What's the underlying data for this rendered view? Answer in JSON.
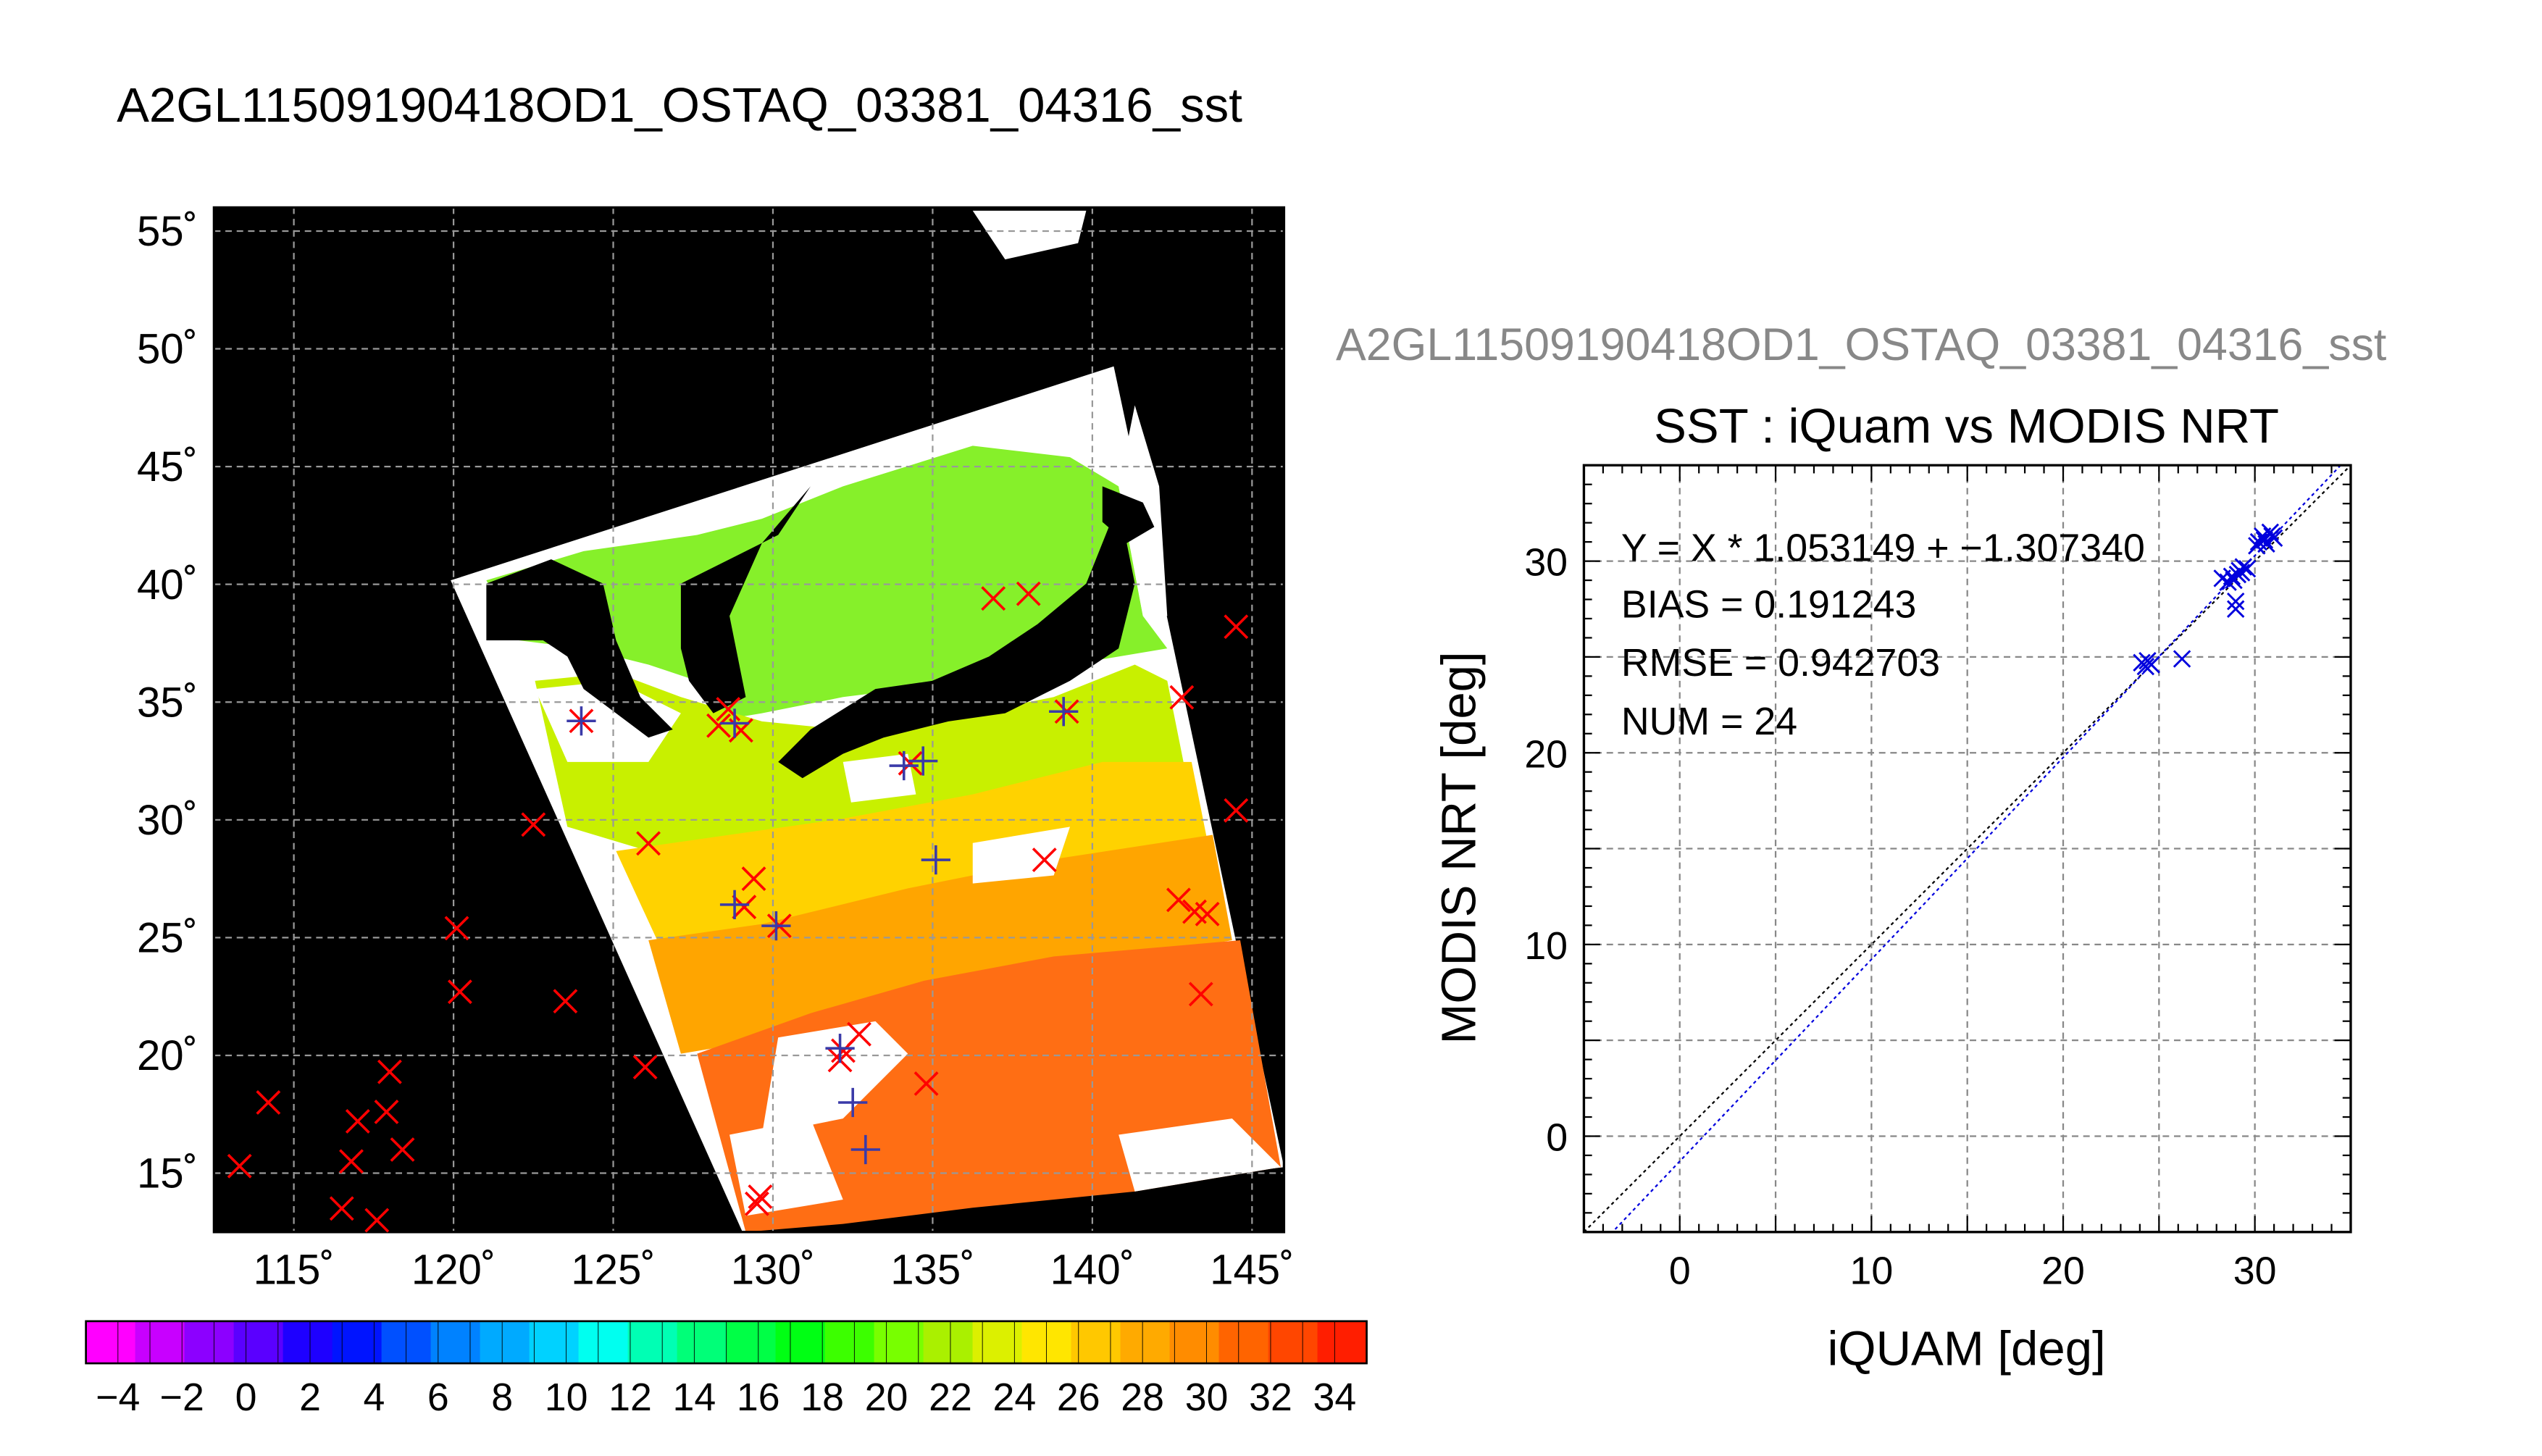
{
  "title": "A2GL11509190418OD1_OSTAQ_03381_04316_sst",
  "map": {
    "lat_labels": [
      "55˚",
      "50˚",
      "45˚",
      "40˚",
      "35˚",
      "30˚",
      "25˚",
      "20˚",
      "15˚"
    ],
    "lon_labels": [
      "115˚",
      "120˚",
      "125˚",
      "130˚",
      "135˚",
      "140˚",
      "145˚"
    ],
    "lon_range": [
      112.5,
      146
    ],
    "lat_range": [
      12.5,
      56
    ],
    "colors": {
      "background": "#000000",
      "cloud": "#ffffff",
      "land": "#000000",
      "marker_red": "#ff0000",
      "marker_blue": "#3a3aa8"
    },
    "red_markers": [
      [
        113.3,
        15.3
      ],
      [
        114.2,
        18
      ],
      [
        116.5,
        13.5
      ],
      [
        116.8,
        15.5
      ],
      [
        117,
        17.2
      ],
      [
        117.6,
        13
      ],
      [
        117.9,
        17.6
      ],
      [
        118,
        19.3
      ],
      [
        118.4,
        16
      ],
      [
        120.1,
        25.4
      ],
      [
        120.2,
        22.7
      ],
      [
        122.5,
        29.8
      ],
      [
        123.5,
        22.3
      ],
      [
        124,
        34.2
      ],
      [
        126,
        19.5
      ],
      [
        126.1,
        29
      ],
      [
        128.3,
        34
      ],
      [
        128.6,
        34.7
      ],
      [
        129,
        33.8
      ],
      [
        129.1,
        26.3
      ],
      [
        129.4,
        27.5
      ],
      [
        129.5,
        13.7
      ],
      [
        129.6,
        14
      ],
      [
        130.2,
        25.5
      ],
      [
        132.1,
        19.8
      ],
      [
        132.2,
        20.2
      ],
      [
        132.7,
        20.9
      ],
      [
        134.8,
        18.8
      ],
      [
        134.3,
        32.4
      ],
      [
        136.9,
        39.4
      ],
      [
        138,
        39.6
      ],
      [
        138.5,
        28.3
      ],
      [
        139.2,
        34.6
      ],
      [
        142.7,
        26.6
      ],
      [
        142.8,
        35.2
      ],
      [
        143.2,
        26.1
      ],
      [
        143.4,
        22.6
      ],
      [
        143.6,
        26
      ],
      [
        144.5,
        38.2
      ],
      [
        144.5,
        30.4
      ]
    ],
    "blue_markers": [
      [
        124,
        34.2
      ],
      [
        128.8,
        26.4
      ],
      [
        130.1,
        25.5
      ],
      [
        132.1,
        20.3
      ],
      [
        132.5,
        18
      ],
      [
        132.9,
        16
      ],
      [
        134.1,
        32.3
      ],
      [
        134.7,
        32.5
      ],
      [
        135.1,
        28.3
      ],
      [
        139.1,
        34.6
      ],
      [
        128.8,
        34.1
      ]
    ]
  },
  "colorbar": {
    "labels": [
      "−4",
      "−2",
      "0",
      "2",
      "4",
      "6",
      "8",
      "10",
      "12",
      "14",
      "16",
      "18",
      "20",
      "22",
      "24",
      "26",
      "28",
      "30",
      "32",
      "34"
    ],
    "colors": [
      "#ff00ff",
      "#c800ff",
      "#8c00ff",
      "#5a00ff",
      "#1e00ff",
      "#0014ff",
      "#0050ff",
      "#0082ff",
      "#00aaff",
      "#00d2ff",
      "#00fff0",
      "#00ffb4",
      "#00ff78",
      "#00ff46",
      "#00ff14",
      "#3cff00",
      "#78ff00",
      "#aaf000",
      "#dcf000",
      "#ffe600",
      "#ffc800",
      "#ffaa00",
      "#ff8c00",
      "#ff6400",
      "#ff4600",
      "#ff1e00"
    ]
  },
  "scatter": {
    "header": "A2GL11509190418OD1_OSTAQ_03381_04316_sst",
    "title": "SST : iQuam vs MODIS NRT",
    "stats": [
      "Y = X * 1.053149 + −1.307340",
      "BIAS = 0.191243",
      "RMSE = 0.942703",
      "NUM = 24"
    ],
    "xlabel": "iQUAM [deg]",
    "ylabel": "MODIS NRT [deg]"
  },
  "chart_data": {
    "type": "scatter",
    "title": "SST : iQuam vs MODIS NRT",
    "xlabel": "iQUAM [deg]",
    "ylabel": "MODIS NRT [deg]",
    "xlim": [
      -5,
      35
    ],
    "ylim": [
      -5,
      35
    ],
    "x_ticks": [
      0,
      10,
      20,
      30
    ],
    "y_ticks": [
      0,
      10,
      20,
      30
    ],
    "grid": true,
    "series": [
      {
        "values": [
          [
            24.1,
            24.7
          ],
          [
            24.3,
            24.5
          ],
          [
            24.6,
            24.6
          ],
          [
            26.2,
            24.9
          ],
          [
            28.3,
            29.1
          ],
          [
            28.6,
            28.9
          ],
          [
            28.8,
            29.2
          ],
          [
            29.0,
            27.5
          ],
          [
            29.0,
            27.9
          ],
          [
            29.2,
            29.5
          ],
          [
            29.4,
            29.7
          ],
          [
            29.6,
            29.6
          ],
          [
            30.2,
            31.0
          ],
          [
            30.4,
            31.3
          ],
          [
            30.6,
            30.9
          ],
          [
            30.8,
            31.5
          ],
          [
            31.0,
            31.2
          ],
          [
            28.9,
            29.0
          ],
          [
            29.1,
            29.3
          ],
          [
            30.5,
            31.1
          ],
          [
            30.9,
            31.3
          ],
          [
            24.4,
            24.8
          ],
          [
            30.1,
            30.8
          ],
          [
            29.3,
            29.4
          ]
        ]
      },
      {
        "fit": {
          "slope": 1.053149,
          "intercept": -1.30734
        }
      },
      {
        "reference_line": "y = x"
      }
    ]
  }
}
